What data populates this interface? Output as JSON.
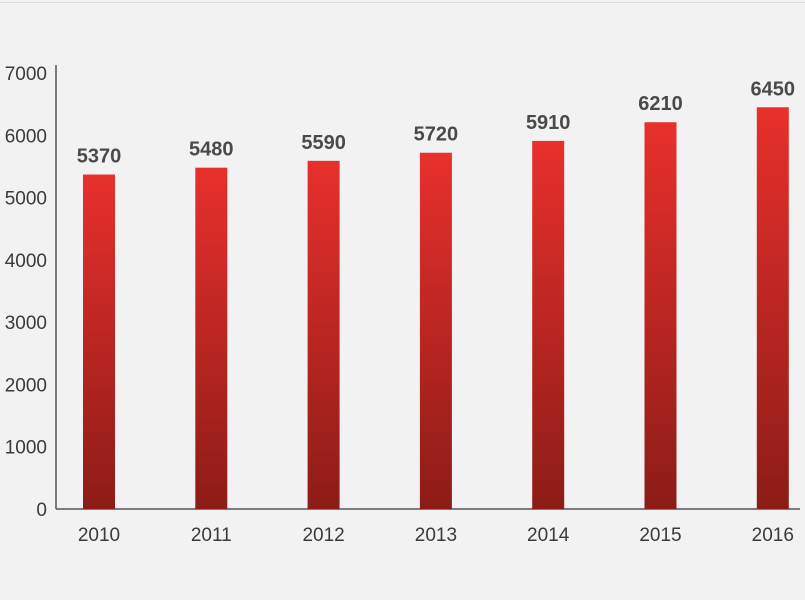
{
  "chart_data": {
    "type": "bar",
    "categories": [
      "2010",
      "2011",
      "2012",
      "2013",
      "2014",
      "2015",
      "2016"
    ],
    "values": [
      5370,
      5480,
      5590,
      5720,
      5910,
      6210,
      6450
    ],
    "data_labels": [
      "5370",
      "5480",
      "5590",
      "5720",
      "5910",
      "6210",
      "6450"
    ],
    "y_ticks": [
      "0",
      "1000",
      "2000",
      "3000",
      "4000",
      "5000",
      "6000",
      "7000"
    ],
    "ylim": [
      0,
      7000
    ],
    "title": "",
    "xlabel": "",
    "ylabel": "",
    "grid": false,
    "bar_color_top": "#e8302c",
    "bar_color_bottom": "#8c1c17",
    "axis_color": "#555555"
  }
}
